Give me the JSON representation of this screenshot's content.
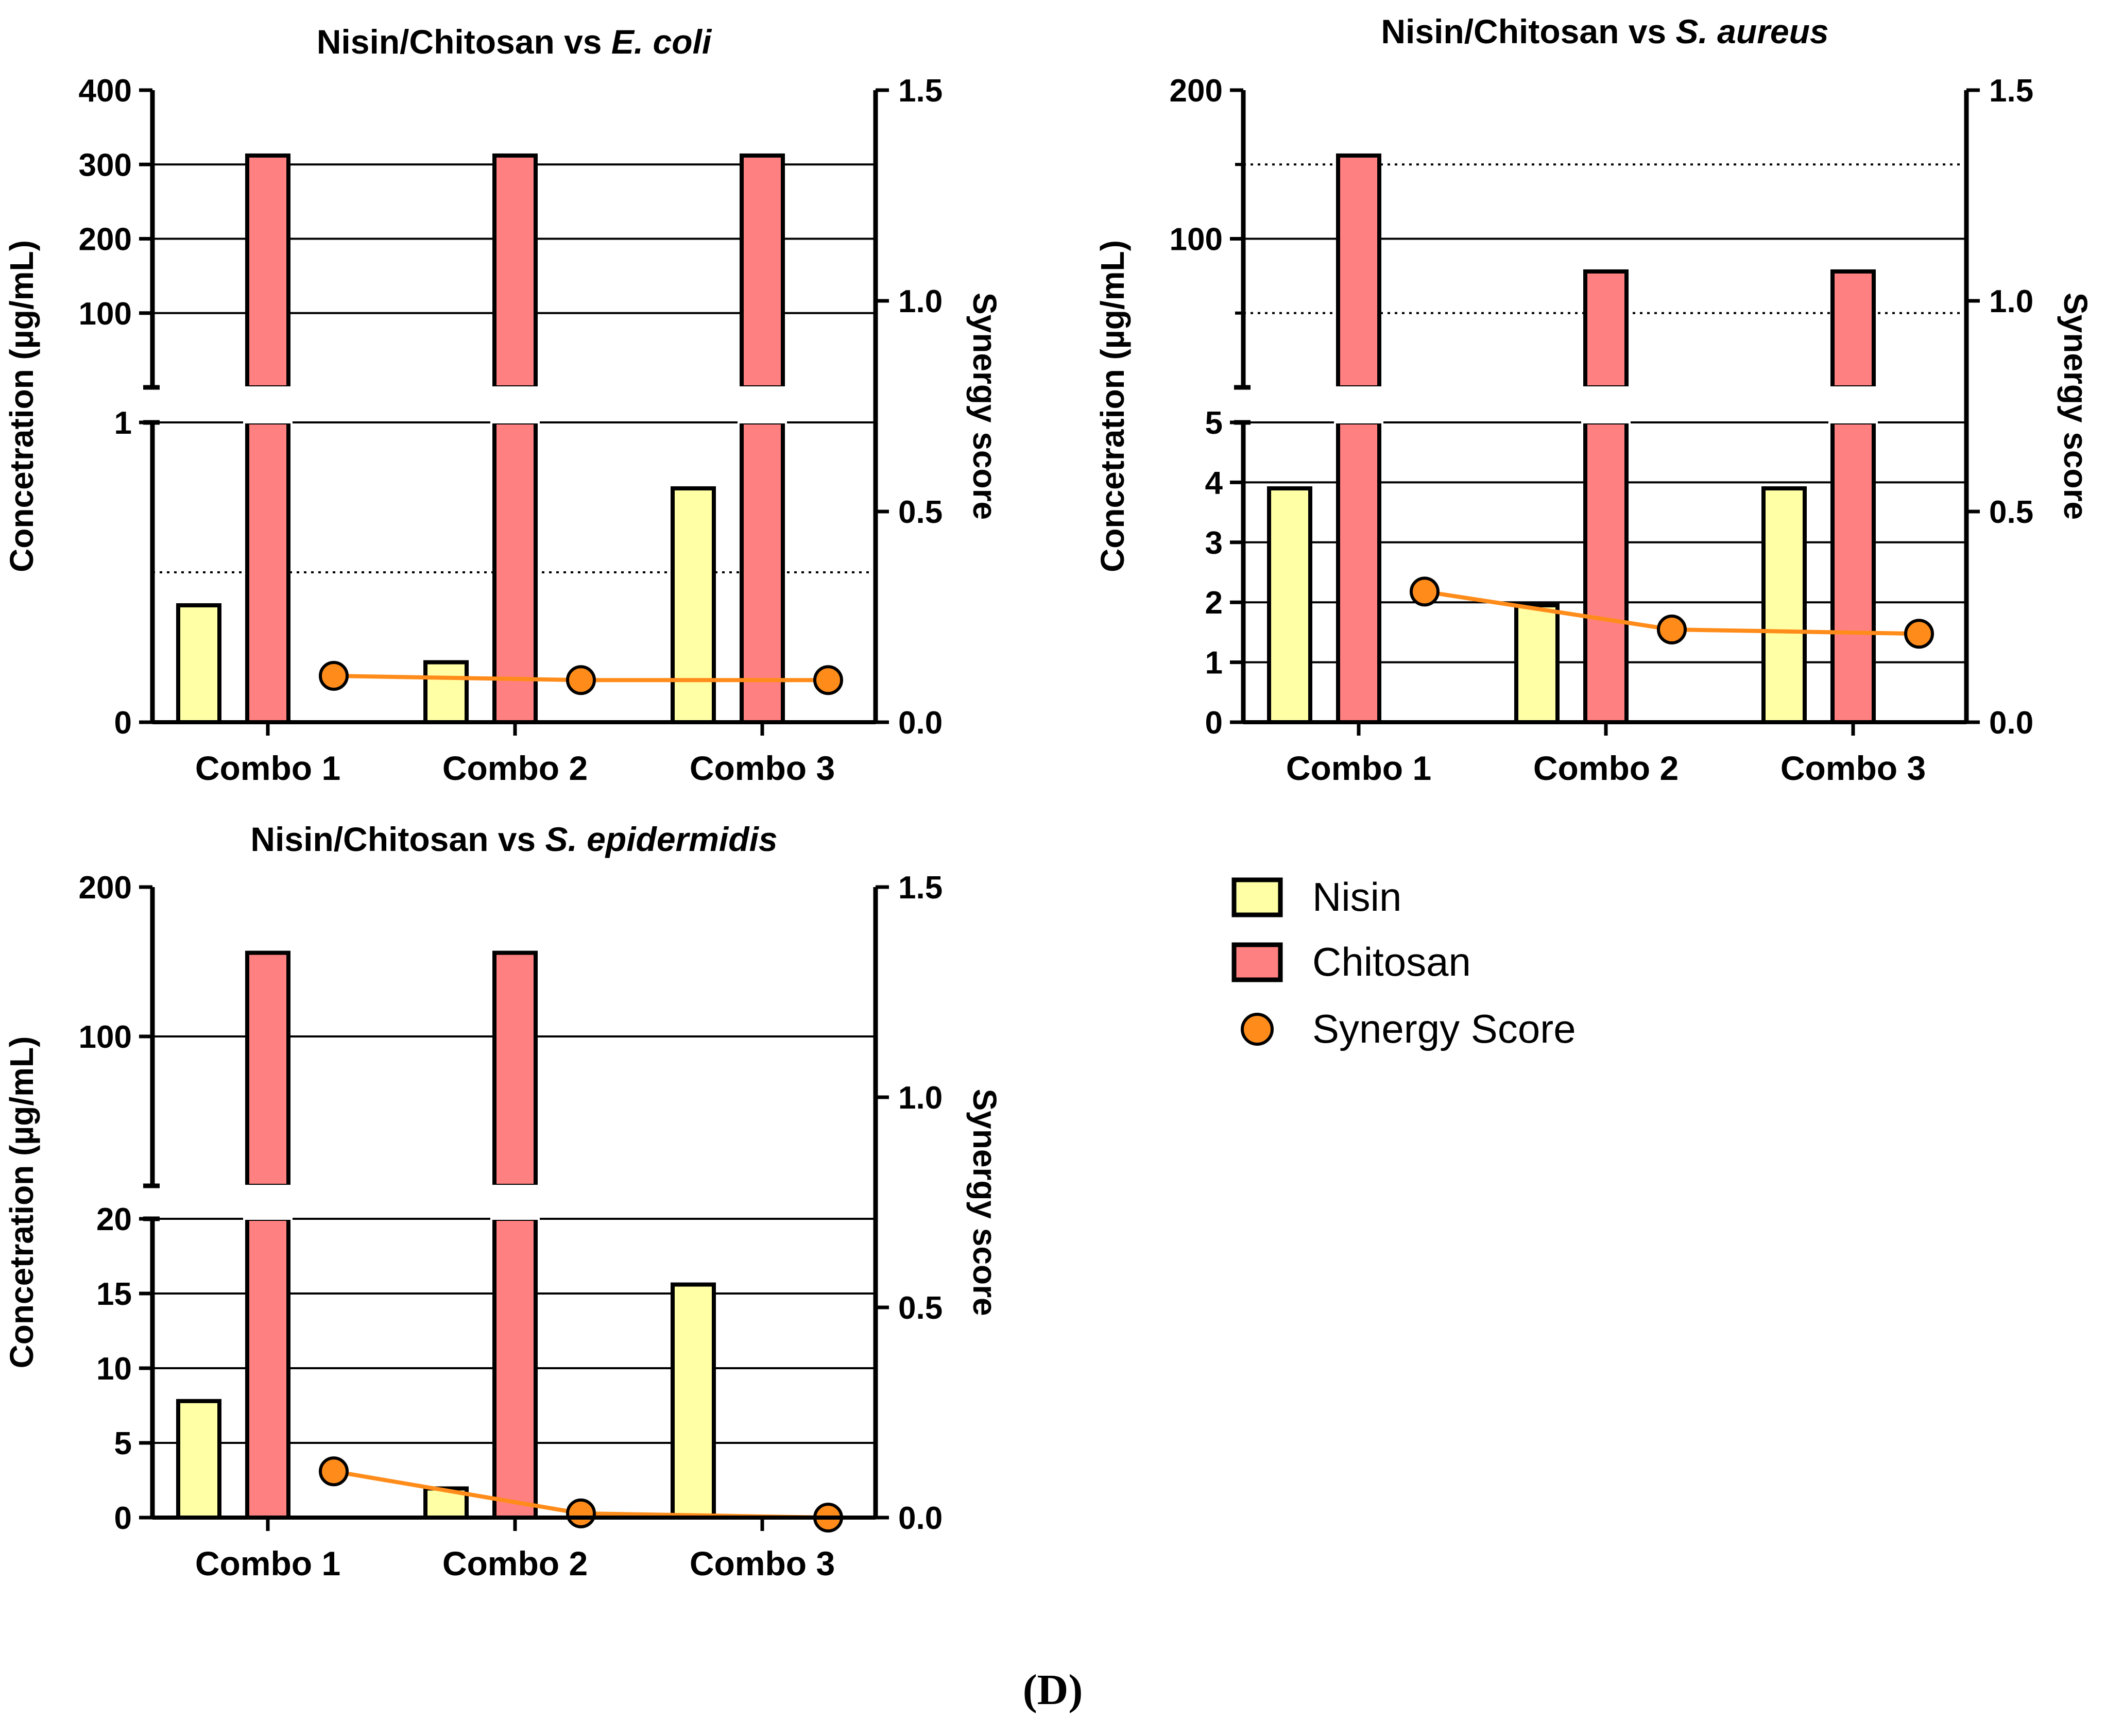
{
  "figure_label": "(D)",
  "legend": {
    "items": [
      {
        "label": "Nisin",
        "marker": "bar",
        "color": "#FFFFA6"
      },
      {
        "label": "Chitosan",
        "marker": "bar",
        "color": "#FF8080"
      },
      {
        "label": "Synergy Score",
        "marker": "circle",
        "color": "#FF8C1A"
      }
    ]
  },
  "colors": {
    "nisin": "#FFFFA6",
    "chitosan": "#FF8080",
    "synergy": "#FF8C1A",
    "axis": "#000000"
  },
  "chart_data": [
    {
      "type": "bar",
      "title_prefix": "Nisin/Chitosan vs",
      "title_species": "E. coli",
      "ylabel": "Concetration (µg/mL)",
      "y2label": "Synergy score",
      "categories": [
        "Combo 1",
        "Combo 2",
        "Combo 3"
      ],
      "series": [
        {
          "name": "Nisin",
          "values": [
            0.39,
            0.2,
            0.78
          ]
        },
        {
          "name": "Chitosan",
          "values": [
            312,
            312,
            312
          ]
        },
        {
          "name": "Synergy Score",
          "type": "line",
          "axis": "right",
          "values": [
            0.11,
            0.1,
            0.1
          ]
        }
      ],
      "y_axis_broken": true,
      "y_lower_range": [
        0,
        1
      ],
      "y_lower_ticks": [
        0,
        1
      ],
      "y_upper_range": [
        0,
        400
      ],
      "y_upper_ticks": [
        100,
        200,
        300,
        400
      ],
      "y2_range": [
        0,
        1.5
      ],
      "y2_ticks": [
        "0.0",
        "0.5",
        "1.0",
        "1.5"
      ],
      "solid_gridlines_lower": [
        1
      ],
      "dotted_gridlines_lower": [
        0.5
      ],
      "solid_gridlines_upper": [
        100,
        200,
        300
      ],
      "dotted_gridlines_upper": []
    },
    {
      "type": "bar",
      "title_prefix": "Nisin/Chitosan vs",
      "title_species": "S. aureus",
      "ylabel": "Concetration (µg/mL)",
      "y2label": "Synergy score",
      "categories": [
        "Combo 1",
        "Combo 2",
        "Combo 3"
      ],
      "series": [
        {
          "name": "Nisin",
          "values": [
            3.9,
            1.95,
            3.9
          ]
        },
        {
          "name": "Chitosan",
          "values": [
            156,
            78,
            78
          ]
        },
        {
          "name": "Synergy Score",
          "type": "line",
          "axis": "right",
          "values": [
            0.31,
            0.22,
            0.21
          ]
        }
      ],
      "y_axis_broken": true,
      "y_lower_range": [
        0,
        5
      ],
      "y_lower_ticks": [
        0,
        1,
        2,
        3,
        4,
        5
      ],
      "y_upper_range": [
        0,
        200
      ],
      "y_upper_ticks": [
        100,
        200
      ],
      "y_upper_minor_ticks": [
        50,
        150
      ],
      "y2_range": [
        0,
        1.5
      ],
      "y2_ticks": [
        "0.0",
        "0.5",
        "1.0",
        "1.5"
      ],
      "solid_gridlines_lower": [
        1,
        2,
        3,
        4,
        5
      ],
      "dotted_gridlines_lower": [],
      "solid_gridlines_upper": [
        100
      ],
      "dotted_gridlines_upper": [
        50,
        150
      ]
    },
    {
      "type": "bar",
      "title_prefix": "Nisin/Chitosan vs",
      "title_species": "S. epidermidis",
      "ylabel": "Concetration (µg/mL)",
      "y2label": "Synergy score",
      "categories": [
        "Combo 1",
        "Combo 2",
        "Combo 3"
      ],
      "series": [
        {
          "name": "Nisin",
          "values": [
            7.8,
            1.95,
            15.6
          ]
        },
        {
          "name": "Chitosan",
          "values": [
            156,
            156,
            0
          ]
        },
        {
          "name": "Synergy Score",
          "type": "line",
          "axis": "right",
          "values": [
            0.11,
            0.01,
            0.0
          ]
        }
      ],
      "y_axis_broken": true,
      "y_lower_range": [
        0,
        20
      ],
      "y_lower_ticks": [
        0,
        5,
        10,
        15,
        20
      ],
      "y_upper_range": [
        0,
        200
      ],
      "y_upper_ticks": [
        100,
        200
      ],
      "y2_range": [
        0,
        1.5
      ],
      "y2_ticks": [
        "0.0",
        "0.5",
        "1.0",
        "1.5"
      ],
      "solid_gridlines_lower": [
        5,
        10,
        15,
        20
      ],
      "dotted_gridlines_lower": [],
      "solid_gridlines_upper": [
        100
      ],
      "dotted_gridlines_upper": []
    }
  ]
}
